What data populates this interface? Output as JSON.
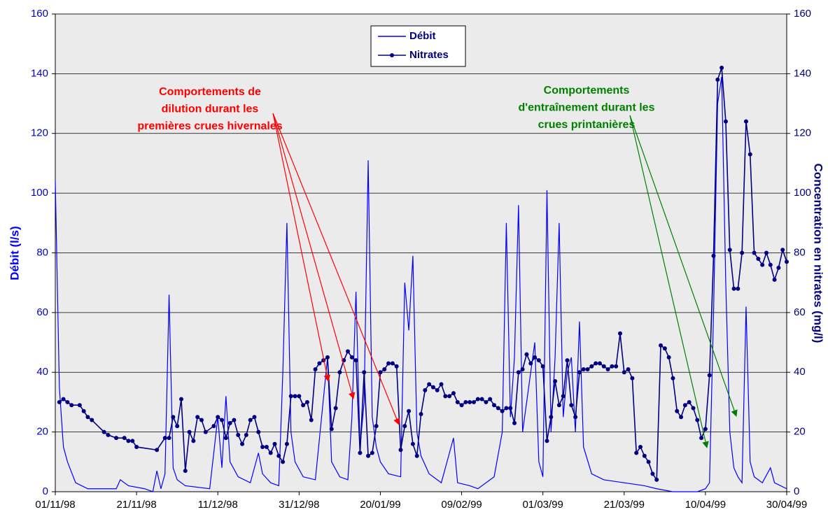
{
  "chart_data": {
    "type": "line",
    "y_label": "Débit (l/s)",
    "y2_label": "Concentration en nitrates (mg/l)",
    "xlim": [
      "1998-11-01",
      "1999-04-30"
    ],
    "xticks": [
      {
        "value": "1998-11-01",
        "label": "01/11/98"
      },
      {
        "value": "1998-11-21",
        "label": "21/11/98"
      },
      {
        "value": "1998-12-11",
        "label": "11/12/98"
      },
      {
        "value": "1998-12-31",
        "label": "31/12/98"
      },
      {
        "value": "1999-01-20",
        "label": "20/01/99"
      },
      {
        "value": "1999-02-09",
        "label": "09/02/99"
      },
      {
        "value": "1999-03-01",
        "label": "01/03/99"
      },
      {
        "value": "1999-03-21",
        "label": "21/03/99"
      },
      {
        "value": "1999-04-10",
        "label": "10/04/99"
      },
      {
        "value": "1999-04-30",
        "label": "30/04/99"
      }
    ],
    "ylim": [
      0,
      160
    ],
    "yticks": [
      0,
      20,
      40,
      60,
      80,
      100,
      120,
      140,
      160
    ],
    "y2lim": [
      0,
      160
    ],
    "y2ticks": [
      0,
      20,
      40,
      60,
      80,
      100,
      120,
      140,
      160
    ],
    "grid": true,
    "legend": "top-center",
    "series": [
      {
        "name": "Débit",
        "color": "#0000ff",
        "axis": "y",
        "x": [
          "1998-11-01",
          "1998-11-02",
          "1998-11-03",
          "1998-11-04",
          "1998-11-06",
          "1998-11-09",
          "1998-11-16",
          "1998-11-17",
          "1998-11-19",
          "1998-11-23",
          "1998-11-25",
          "1998-11-26",
          "1998-11-27",
          "1998-11-28",
          "1998-11-29",
          "1998-11-30",
          "1998-12-01",
          "1998-12-03",
          "1998-12-09",
          "1998-12-11",
          "1998-12-12",
          "1998-12-13",
          "1998-12-14",
          "1998-12-16",
          "1998-12-19",
          "1998-12-21",
          "1998-12-22",
          "1998-12-24",
          "1998-12-26",
          "1998-12-27",
          "1998-12-28",
          "1998-12-29",
          "1998-12-30",
          "1999-01-01",
          "1999-01-04",
          "1999-01-07",
          "1999-01-08",
          "1999-01-10",
          "1999-01-12",
          "1999-01-13",
          "1999-01-14",
          "1999-01-15",
          "1999-01-16",
          "1999-01-17",
          "1999-01-18",
          "1999-01-19",
          "1999-01-20",
          "1999-01-22",
          "1999-01-25",
          "1999-01-26",
          "1999-01-27",
          "1999-01-28",
          "1999-01-29",
          "1999-01-30",
          "1999-02-01",
          "1999-02-04",
          "1999-02-07",
          "1999-02-08",
          "1999-02-11",
          "1999-02-13",
          "1999-02-17",
          "1999-02-19",
          "1999-02-20",
          "1999-02-21",
          "1999-02-22",
          "1999-02-23",
          "1999-02-24",
          "1999-02-26",
          "1999-02-27",
          "1999-02-28",
          "1999-03-01",
          "1999-03-02",
          "1999-03-03",
          "1999-03-04",
          "1999-03-05",
          "1999-03-06",
          "1999-03-07",
          "1999-03-08",
          "1999-03-09",
          "1999-03-10",
          "1999-03-11",
          "1999-03-13",
          "1999-03-16",
          "1999-03-21",
          "1999-03-26",
          "1999-03-29",
          "1999-04-02",
          "1999-04-08",
          "1999-04-10",
          "1999-04-11",
          "1999-04-12",
          "1999-04-13",
          "1999-04-14",
          "1999-04-15",
          "1999-04-16",
          "1999-04-17",
          "1999-04-18",
          "1999-04-19",
          "1999-04-20",
          "1999-04-21",
          "1999-04-22",
          "1999-04-24",
          "1999-04-26",
          "1999-04-27",
          "1999-04-30"
        ],
        "values": [
          104,
          35,
          15,
          10,
          3,
          1,
          1,
          4,
          2,
          1,
          0,
          7,
          1,
          6,
          66,
          8,
          4,
          2,
          1,
          25,
          8,
          32,
          10,
          5,
          3,
          13,
          6,
          3,
          2,
          40,
          90,
          20,
          10,
          5,
          4,
          45,
          10,
          5,
          4,
          25,
          67,
          15,
          30,
          111,
          25,
          15,
          10,
          6,
          5,
          70,
          54,
          79,
          20,
          12,
          6,
          3,
          18,
          3,
          2,
          1,
          5,
          20,
          90,
          25,
          45,
          96,
          20,
          40,
          50,
          10,
          5,
          101,
          20,
          45,
          90,
          25,
          40,
          45,
          20,
          57,
          15,
          6,
          4,
          3,
          2,
          1,
          0,
          0,
          1,
          3,
          60,
          130,
          139,
          70,
          20,
          8,
          5,
          3,
          62,
          10,
          5,
          3,
          8,
          3,
          1
        ]
      },
      {
        "name": "Nitrates",
        "color": "#000080",
        "axis": "y2",
        "marker": "circle",
        "x": [
          "1998-11-02",
          "1998-11-03",
          "1998-11-04",
          "1998-11-05",
          "1998-11-07",
          "1998-11-08",
          "1998-11-09",
          "1998-11-10",
          "1998-11-13",
          "1998-11-14",
          "1998-11-16",
          "1998-11-18",
          "1998-11-19",
          "1998-11-20",
          "1998-11-21",
          "1998-11-26",
          "1998-11-28",
          "1998-11-29",
          "1998-11-30",
          "1998-12-01",
          "1998-12-02",
          "1998-12-03",
          "1998-12-04",
          "1998-12-05",
          "1998-12-06",
          "1998-12-07",
          "1998-12-08",
          "1998-12-10",
          "1998-12-11",
          "1998-12-12",
          "1998-12-13",
          "1998-12-14",
          "1998-12-15",
          "1998-12-16",
          "1998-12-17",
          "1998-12-18",
          "1998-12-19",
          "1998-12-20",
          "1998-12-21",
          "1998-12-22",
          "1998-12-23",
          "1998-12-24",
          "1998-12-25",
          "1998-12-26",
          "1998-12-27",
          "1998-12-28",
          "1998-12-29",
          "1998-12-30",
          "1998-12-31",
          "1999-01-01",
          "1999-01-02",
          "1999-01-03",
          "1999-01-04",
          "1999-01-05",
          "1999-01-06",
          "1999-01-07",
          "1999-01-08",
          "1999-01-09",
          "1999-01-10",
          "1999-01-11",
          "1999-01-12",
          "1999-01-13",
          "1999-01-14",
          "1999-01-15",
          "1999-01-16",
          "1999-01-17",
          "1999-01-18",
          "1999-01-19",
          "1999-01-20",
          "1999-01-21",
          "1999-01-22",
          "1999-01-23",
          "1999-01-24",
          "1999-01-25",
          "1999-01-26",
          "1999-01-27",
          "1999-01-28",
          "1999-01-29",
          "1999-01-30",
          "1999-01-31",
          "1999-02-01",
          "1999-02-02",
          "1999-02-03",
          "1999-02-04",
          "1999-02-05",
          "1999-02-06",
          "1999-02-07",
          "1999-02-08",
          "1999-02-09",
          "1999-02-10",
          "1999-02-11",
          "1999-02-12",
          "1999-02-13",
          "1999-02-14",
          "1999-02-15",
          "1999-02-16",
          "1999-02-17",
          "1999-02-18",
          "1999-02-19",
          "1999-02-20",
          "1999-02-21",
          "1999-02-22",
          "1999-02-23",
          "1999-02-24",
          "1999-02-25",
          "1999-02-26",
          "1999-02-27",
          "1999-02-28",
          "1999-03-01",
          "1999-03-02",
          "1999-03-03",
          "1999-03-04",
          "1999-03-05",
          "1999-03-06",
          "1999-03-07",
          "1999-03-08",
          "1999-03-09",
          "1999-03-10",
          "1999-03-11",
          "1999-03-12",
          "1999-03-13",
          "1999-03-14",
          "1999-03-15",
          "1999-03-16",
          "1999-03-17",
          "1999-03-18",
          "1999-03-19",
          "1999-03-20",
          "1999-03-21",
          "1999-03-22",
          "1999-03-23",
          "1999-03-24",
          "1999-03-25",
          "1999-03-26",
          "1999-03-27",
          "1999-03-28",
          "1999-03-29",
          "1999-03-30",
          "1999-03-31",
          "1999-04-01",
          "1999-04-02",
          "1999-04-03",
          "1999-04-04",
          "1999-04-05",
          "1999-04-06",
          "1999-04-07",
          "1999-04-08",
          "1999-04-09",
          "1999-04-10",
          "1999-04-11",
          "1999-04-12",
          "1999-04-13",
          "1999-04-14",
          "1999-04-15",
          "1999-04-16",
          "1999-04-17",
          "1999-04-18",
          "1999-04-19",
          "1999-04-20",
          "1999-04-21",
          "1999-04-22",
          "1999-04-23",
          "1999-04-24",
          "1999-04-25",
          "1999-04-26",
          "1999-04-27",
          "1999-04-28",
          "1999-04-29",
          "1999-04-30"
        ],
        "values": [
          30,
          31,
          30,
          29,
          29,
          27,
          25,
          24,
          20,
          19,
          18,
          18,
          17,
          17,
          15,
          14,
          18,
          18,
          25,
          22,
          31,
          7,
          20,
          17,
          25,
          24,
          20,
          22,
          25,
          24,
          18,
          23,
          24,
          19,
          16,
          19,
          24,
          25,
          20,
          15,
          15,
          13,
          16,
          12,
          10,
          16,
          32,
          32,
          32,
          29,
          30,
          24,
          41,
          43,
          44,
          45,
          21,
          28,
          40,
          44,
          47,
          45,
          44,
          13,
          40,
          12,
          13,
          22,
          40,
          41,
          43,
          43,
          42,
          14,
          22,
          27,
          16,
          12,
          26,
          34,
          36,
          35,
          34,
          36,
          32,
          32,
          33,
          30,
          29,
          30,
          30,
          30,
          31,
          31,
          30,
          31,
          29,
          28,
          27,
          28,
          28,
          23,
          40,
          41,
          46,
          43,
          45,
          44,
          42,
          17,
          25,
          37,
          29,
          32,
          44,
          29,
          25,
          40,
          41,
          41,
          42,
          43,
          43,
          42,
          41,
          42,
          42,
          53,
          40,
          41,
          38,
          13,
          15,
          12,
          10,
          6,
          4,
          49,
          48,
          45,
          38,
          27,
          25,
          29,
          30,
          28,
          24,
          18,
          21,
          39,
          79,
          138,
          142,
          124,
          81,
          68,
          68,
          80,
          124,
          113,
          80,
          78,
          76,
          80,
          76,
          71,
          75,
          81,
          77
        ]
      }
    ],
    "annotations": [
      {
        "lines": [
          "Comportements de",
          "dilution durant les",
          "premières crues hivernales"
        ],
        "color": "#ff0000"
      },
      {
        "lines": [
          "Comportements",
          "d'entraînement durant les",
          "crues printanières"
        ],
        "color": "#008000"
      }
    ]
  }
}
